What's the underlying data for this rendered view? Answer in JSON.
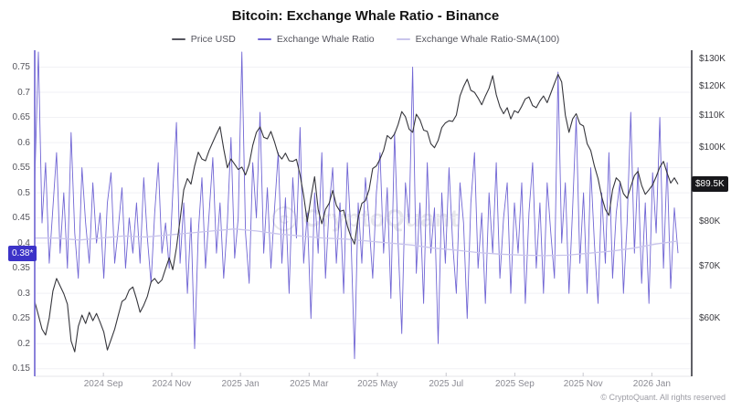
{
  "header": {
    "title": "Bitcoin: Exchange Whale Ratio - Binance"
  },
  "legend": {
    "items": [
      {
        "label": "Price USD",
        "color": "#55555e"
      },
      {
        "label": "Exchange Whale Ratio",
        "color": "#7166d4"
      },
      {
        "label": "Exchange Whale Ratio-SMA(100)",
        "color": "#c9c5ec"
      }
    ]
  },
  "watermark": {
    "text": "CryptoQuant"
  },
  "footer": {
    "text": "© CryptoQuant. All rights reserved"
  },
  "badges": {
    "left": {
      "text": "0.38*",
      "value": 0.38,
      "color": "#3c33c8"
    },
    "right": {
      "text": "$89.5K",
      "value": 89.5,
      "color": "#17171b"
    }
  },
  "axes": {
    "left_tick_labels": [
      "0.75",
      "0.7",
      "0.65",
      "0.6",
      "0.55",
      "0.5",
      "0.45",
      "0.4",
      "0.35",
      "0.3",
      "0.25",
      "0.2",
      "0.15"
    ],
    "left_tick_values": [
      0.75,
      0.7,
      0.65,
      0.6,
      0.55,
      0.5,
      0.45,
      0.4,
      0.35,
      0.3,
      0.25,
      0.2,
      0.15
    ],
    "right_ticks": [
      {
        "label": "$130K",
        "value": 130
      },
      {
        "label": "$120K",
        "value": 120
      },
      {
        "label": "$110K",
        "value": 110
      },
      {
        "label": "$100K",
        "value": 100
      },
      {
        "label": "$80K",
        "value": 80
      },
      {
        "label": "$70K",
        "value": 70
      },
      {
        "label": "$60K",
        "value": 60
      }
    ],
    "x_ticks": [
      {
        "label": "2024 Sep",
        "index": 18.9
      },
      {
        "label": "2024 Nov",
        "index": 37.7
      },
      {
        "label": "2025 Jan",
        "index": 56.6
      },
      {
        "label": "2025 Mar",
        "index": 75.5
      },
      {
        "label": "2025 May",
        "index": 94.3
      },
      {
        "label": "2025 Jul",
        "index": 113.2
      },
      {
        "label": "2025 Sep",
        "index": 132.1
      },
      {
        "label": "2025 Nov",
        "index": 150.9
      },
      {
        "label": "2026 Jan",
        "index": 169.8
      }
    ]
  },
  "chart_data": {
    "type": "line",
    "title": "Bitcoin: Exchange Whale Ratio - Binance",
    "x_description": "178 samples, approx 3-day interval, Jul 2024 to late Jan 2026",
    "x_tick_labels": [
      "2024 Sep",
      "2024 Nov",
      "2025 Jan",
      "2025 Mar",
      "2025 May",
      "2025 Jul",
      "2025 Sep",
      "2025 Nov",
      "2026 Jan"
    ],
    "left_axis": {
      "label": "Exchange Whale Ratio",
      "scale": "linear",
      "range": [
        0.135,
        0.78
      ],
      "latest": 0.38
    },
    "right_axis": {
      "label": "Price USD",
      "scale": "log",
      "range_k_usd": [
        55,
        132
      ],
      "latest_k_usd": 89.5
    },
    "grid": "horizontal",
    "legend_position": "top",
    "series": [
      {
        "name": "Price USD",
        "axis": "right",
        "unit": "thousand USD",
        "color": "#36363c",
        "values": [
          63,
          60.5,
          58,
          57,
          60,
          65,
          67.5,
          66,
          64.5,
          62.5,
          56,
          54.2,
          58.5,
          60.5,
          59,
          61,
          59.5,
          60.8,
          59.2,
          57.5,
          54.5,
          56.2,
          58,
          60.5,
          63,
          63.5,
          65.2,
          65.8,
          63.5,
          61,
          62.3,
          64,
          66.8,
          67.5,
          66.5,
          67.2,
          69.5,
          71.8,
          69.3,
          74,
          80.5,
          88,
          91,
          89.5,
          94.5,
          98.5,
          96.5,
          96,
          99,
          101.5,
          104,
          106.3,
          99.5,
          94,
          96.5,
          95,
          93.5,
          94.2,
          92,
          95,
          100.5,
          104.5,
          106.2,
          103,
          102.5,
          104.8,
          101.5,
          97.8,
          96.5,
          98.2,
          96,
          95.8,
          96.4,
          92,
          86.5,
          80,
          86,
          91.5,
          83,
          79.5,
          83,
          84.5,
          87.8,
          84,
          82.5,
          82.8,
          79,
          76.5,
          74.8,
          81,
          84.5,
          85.2,
          88,
          93.8,
          94.5,
          96.5,
          99,
          103.5,
          102.5,
          104,
          107,
          111.2,
          109.5,
          105.5,
          104.5,
          110.3,
          108.5,
          105.2,
          104.8,
          101,
          99.8,
          102,
          106,
          107.5,
          108.2,
          108,
          110,
          116.5,
          119.8,
          122.5,
          118.5,
          117.8,
          115.8,
          113.5,
          116.5,
          119.2,
          123.8,
          117,
          112.8,
          110.5,
          112.5,
          108.8,
          111.5,
          110.8,
          113,
          115.5,
          116.2,
          113.2,
          112.5,
          114.8,
          116.5,
          114.2,
          117.5,
          121,
          124.3,
          121.5,
          110,
          104.5,
          108.8,
          110.5,
          107.2,
          106.5,
          101,
          99,
          94.5,
          91,
          86.2,
          83,
          81.5,
          88,
          91.2,
          90.2,
          87,
          85.8,
          88.8,
          91.8,
          93,
          89.2,
          86.8,
          88,
          89.3,
          91.5,
          94.2,
          95.8,
          92.5,
          89.8,
          91.2,
          89.5
        ]
      },
      {
        "name": "Exchange Whale Ratio",
        "axis": "left",
        "color": "#7166d4",
        "values": [
          0.52,
          0.78,
          0.44,
          0.56,
          0.36,
          0.47,
          0.58,
          0.38,
          0.5,
          0.35,
          0.62,
          0.42,
          0.33,
          0.55,
          0.44,
          0.36,
          0.52,
          0.4,
          0.46,
          0.33,
          0.48,
          0.54,
          0.36,
          0.43,
          0.51,
          0.35,
          0.45,
          0.38,
          0.48,
          0.36,
          0.53,
          0.41,
          0.32,
          0.46,
          0.56,
          0.38,
          0.44,
          0.35,
          0.5,
          0.64,
          0.36,
          0.48,
          0.3,
          0.45,
          0.19,
          0.42,
          0.53,
          0.35,
          0.46,
          0.57,
          0.38,
          0.48,
          0.33,
          0.44,
          0.61,
          0.37,
          0.45,
          0.78,
          0.42,
          0.32,
          0.56,
          0.45,
          0.66,
          0.38,
          0.51,
          0.35,
          0.47,
          0.58,
          0.36,
          0.49,
          0.3,
          0.53,
          0.41,
          0.63,
          0.36,
          0.46,
          0.25,
          0.5,
          0.38,
          0.58,
          0.33,
          0.47,
          0.55,
          0.36,
          0.48,
          0.3,
          0.56,
          0.42,
          0.17,
          0.48,
          0.36,
          0.53,
          0.44,
          0.33,
          0.5,
          0.58,
          0.38,
          0.51,
          0.29,
          0.62,
          0.4,
          0.22,
          0.52,
          0.44,
          0.75,
          0.34,
          0.48,
          0.28,
          0.56,
          0.38,
          0.47,
          0.2,
          0.5,
          0.36,
          0.55,
          0.4,
          0.3,
          0.52,
          0.44,
          0.25,
          0.48,
          0.58,
          0.35,
          0.46,
          0.28,
          0.5,
          0.38,
          0.56,
          0.33,
          0.45,
          0.52,
          0.3,
          0.48,
          0.38,
          0.52,
          0.28,
          0.46,
          0.56,
          0.35,
          0.48,
          0.3,
          0.52,
          0.42,
          0.33,
          0.74,
          0.4,
          0.52,
          0.3,
          0.47,
          0.65,
          0.36,
          0.5,
          0.3,
          0.55,
          0.4,
          0.28,
          0.5,
          0.36,
          0.58,
          0.33,
          0.46,
          0.52,
          0.3,
          0.44,
          0.66,
          0.38,
          0.55,
          0.32,
          0.48,
          0.28,
          0.54,
          0.42,
          0.65,
          0.35,
          0.56,
          0.31,
          0.47,
          0.38
        ]
      },
      {
        "name": "Exchange Whale Ratio-SMA(100)",
        "axis": "left",
        "color": "#c9c5ec",
        "values": [
          0.41,
          0.41,
          0.406,
          0.41,
          0.414,
          0.412,
          0.416,
          0.42,
          0.424,
          0.428,
          0.424,
          0.418,
          0.414,
          0.41,
          0.408,
          0.404,
          0.4,
          0.396,
          0.39,
          0.386,
          0.381,
          0.378,
          0.376,
          0.375,
          0.376,
          0.38,
          0.384,
          0.39,
          0.398,
          0.404
        ]
      }
    ]
  }
}
